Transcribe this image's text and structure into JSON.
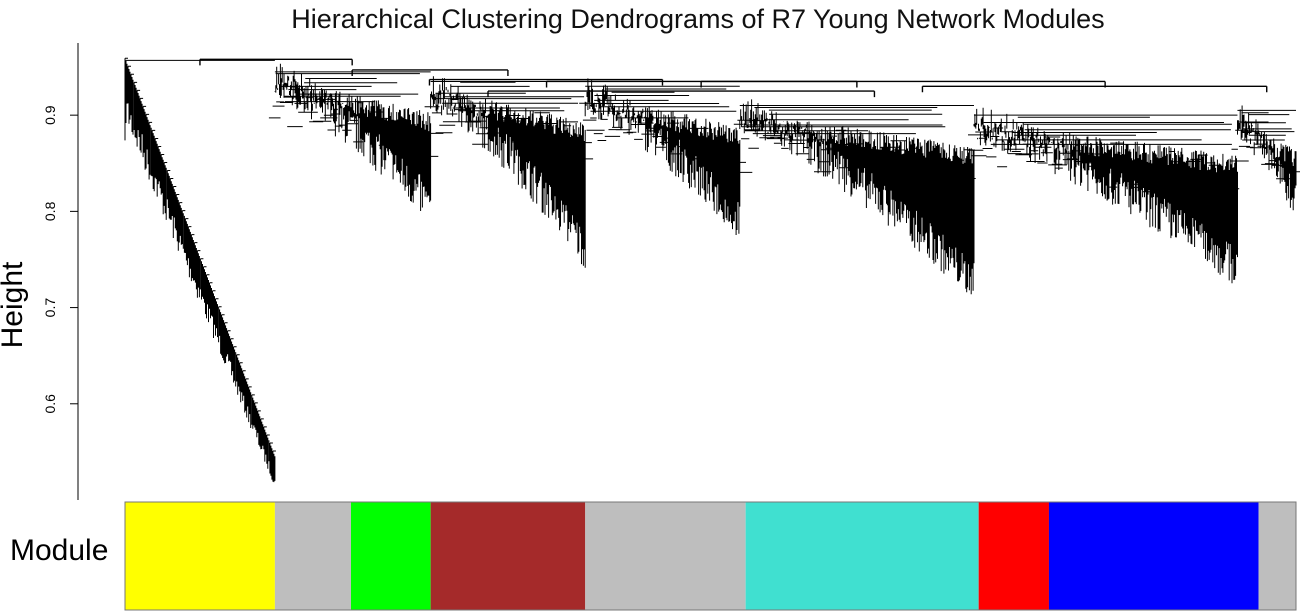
{
  "chart_data": {
    "type": "dendrogram",
    "title": "Hierarchical Clustering Dendrograms of R7 Young Network Modules",
    "ylabel": "Height",
    "yticks": [
      "0.6",
      "0.7",
      "0.8",
      "0.9"
    ],
    "ytick_values": [
      0.6,
      0.7,
      0.8,
      0.9
    ],
    "ylim": [
      0.5,
      0.975
    ],
    "grid": false,
    "module_label": "Module",
    "line_color": "#000000",
    "clusters": [
      {
        "start": 0.0,
        "end": 0.128,
        "top": 0.957,
        "bottom": 0.535,
        "style": "steep"
      },
      {
        "start": 0.128,
        "end": 0.261,
        "top": 0.945,
        "bottom": 0.785,
        "style": "fan"
      },
      {
        "start": 0.261,
        "end": 0.393,
        "top": 0.935,
        "bottom": 0.74,
        "style": "fan"
      },
      {
        "start": 0.393,
        "end": 0.525,
        "top": 0.93,
        "bottom": 0.77,
        "style": "fan"
      },
      {
        "start": 0.525,
        "end": 0.725,
        "top": 0.91,
        "bottom": 0.705,
        "style": "fan"
      },
      {
        "start": 0.725,
        "end": 0.95,
        "top": 0.9,
        "bottom": 0.72,
        "style": "fan"
      },
      {
        "start": 0.95,
        "end": 1.0,
        "top": 0.905,
        "bottom": 0.79,
        "style": "fan"
      }
    ],
    "merges": [
      {
        "a": 0.064,
        "b": 0.194,
        "height": 0.958
      },
      {
        "a": 0.194,
        "b": 0.327,
        "height": 0.947
      },
      {
        "a": 0.26,
        "b": 0.459,
        "height": 0.937
      },
      {
        "a": 0.36,
        "b": 0.625,
        "height": 0.935
      },
      {
        "a": 0.492,
        "b": 0.837,
        "height": 0.935
      },
      {
        "a": 0.681,
        "b": 0.975,
        "height": 0.93
      },
      {
        "a": 0.31,
        "b": 0.64,
        "height": 0.925
      }
    ],
    "modules": [
      {
        "color": "#ffff00",
        "start": 0.0,
        "end": 0.128
      },
      {
        "color": "#bebebe",
        "start": 0.128,
        "end": 0.193
      },
      {
        "color": "#00ff00",
        "start": 0.193,
        "end": 0.261
      },
      {
        "color": "#a52a2a",
        "start": 0.261,
        "end": 0.393
      },
      {
        "color": "#bebebe",
        "start": 0.393,
        "end": 0.53
      },
      {
        "color": "#40e0d0",
        "start": 0.53,
        "end": 0.729
      },
      {
        "color": "#ff0000",
        "start": 0.729,
        "end": 0.789
      },
      {
        "color": "#0000ff",
        "start": 0.789,
        "end": 0.968
      },
      {
        "color": "#bebebe",
        "start": 0.968,
        "end": 1.0
      }
    ]
  }
}
